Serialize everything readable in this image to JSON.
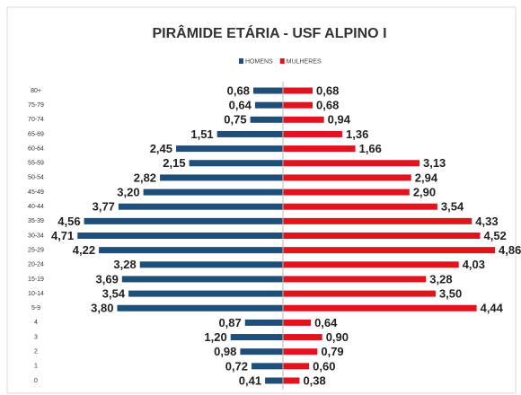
{
  "chart_data": {
    "type": "bar",
    "orientation": "pyramid",
    "title": "PIRÂMIDE ETÁRIA - USF ALPINO I",
    "categories": [
      "80+",
      "75-79",
      "70-74",
      "65-69",
      "60-64",
      "55-59",
      "50-54",
      "45-49",
      "40-44",
      "35-39",
      "30-34",
      "25-29",
      "20-24",
      "15-19",
      "10-14",
      "5-9",
      "4",
      "3",
      "2",
      "1",
      "0"
    ],
    "legend": "top",
    "series": [
      {
        "name": "HOMENS",
        "color": "#1f4e79",
        "side": "left",
        "values": [
          0.68,
          0.64,
          0.75,
          1.51,
          2.45,
          2.15,
          2.82,
          3.2,
          3.77,
          4.56,
          4.71,
          4.22,
          3.28,
          3.69,
          3.54,
          3.8,
          0.87,
          1.2,
          0.98,
          0.72,
          0.41
        ],
        "value_labels": [
          "0,68",
          "0,64",
          "0,75",
          "1,51",
          "2,45",
          "2,15",
          "2,82",
          "3,20",
          "3,77",
          "4,56",
          "4,71",
          "4,22",
          "3,28",
          "3,69",
          "3,54",
          "3,80",
          "0,87",
          "1,20",
          "0,98",
          "0,72",
          "0,41"
        ]
      },
      {
        "name": "MULHERES",
        "color": "#e0141e",
        "side": "right",
        "values": [
          0.68,
          0.68,
          0.94,
          1.36,
          1.66,
          3.13,
          2.94,
          2.9,
          3.54,
          4.33,
          4.52,
          4.86,
          4.03,
          3.28,
          3.5,
          4.44,
          0.64,
          0.9,
          0.79,
          0.6,
          0.38
        ],
        "value_labels": [
          "0,68",
          "0,68",
          "0,94",
          "1,36",
          "1,66",
          "3,13",
          "2,94",
          "2,90",
          "3,54",
          "4,33",
          "4,52",
          "4,86",
          "4,03",
          "3,28",
          "3,50",
          "4,44",
          "0,64",
          "0,90",
          "0,79",
          "0,60",
          "0,38"
        ]
      }
    ]
  }
}
